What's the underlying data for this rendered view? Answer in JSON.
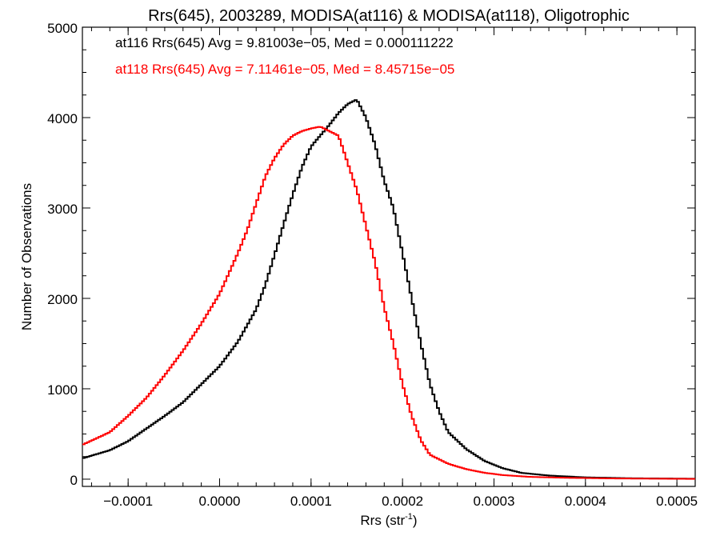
{
  "chart_data": {
    "type": "line",
    "title": "Rrs(645), 2003289, MODISA(at116) & MODISA(at118), Oligotrophic",
    "xlabel": "Rrs (str",
    "xlabel_sup": "-1",
    "xlabel_close": ")",
    "ylabel": "Number of Observations",
    "xlim": [
      -0.00015,
      0.00052
    ],
    "ylim": [
      -80,
      5000
    ],
    "x_ticks": [
      -0.0001,
      0.0,
      0.0001,
      0.0002,
      0.0003,
      0.0004,
      0.0005
    ],
    "x_tick_labels": [
      "−0.0001",
      "0.0000",
      "0.0001",
      "0.0002",
      "0.0003",
      "0.0004",
      "0.0005"
    ],
    "y_ticks": [
      0,
      1000,
      2000,
      3000,
      4000,
      5000
    ],
    "y_tick_labels": [
      "0",
      "1000",
      "2000",
      "3000",
      "4000",
      "5000"
    ],
    "grid": false,
    "legend_position": "top-left",
    "series": [
      {
        "name": "at116",
        "color": "#000000",
        "annotation": "at116 Rrs(645) Avg = 9.81003e−05, Med = 0.000111222",
        "x": [
          -0.00015,
          -0.00012,
          -0.0001,
          -8e-05,
          -6e-05,
          -4e-05,
          -2e-05,
          0.0,
          2e-05,
          4e-05,
          5e-05,
          6e-05,
          7e-05,
          8e-05,
          9e-05,
          0.0001,
          0.00011,
          0.00012,
          0.00013,
          0.00014,
          0.00015,
          0.00016,
          0.00017,
          0.00018,
          0.00019,
          0.0002,
          0.00021,
          0.00022,
          0.00023,
          0.00024,
          0.00025,
          0.00027,
          0.00029,
          0.00031,
          0.00033,
          0.00036,
          0.0004,
          0.00045,
          0.00052
        ],
        "y": [
          230,
          320,
          420,
          560,
          700,
          850,
          1050,
          1250,
          1520,
          1880,
          2150,
          2480,
          2820,
          3150,
          3450,
          3680,
          3800,
          3920,
          4050,
          4150,
          4200,
          4000,
          3700,
          3300,
          3000,
          2500,
          2000,
          1500,
          1050,
          750,
          520,
          330,
          200,
          120,
          70,
          40,
          20,
          10,
          5
        ]
      },
      {
        "name": "at118",
        "color": "#ff0000",
        "annotation": "at118 Rrs(645) Avg = 7.11461e−05, Med = 8.45715e−05",
        "x": [
          -0.00015,
          -0.00012,
          -0.0001,
          -8e-05,
          -6e-05,
          -4e-05,
          -2e-05,
          0.0,
          2e-05,
          3e-05,
          4e-05,
          5e-05,
          6e-05,
          7e-05,
          8e-05,
          9e-05,
          0.0001,
          0.00011,
          0.00012,
          0.00013,
          0.00014,
          0.00015,
          0.00016,
          0.00017,
          0.00018,
          0.00019,
          0.0002,
          0.00021,
          0.00022,
          0.00023,
          0.00025,
          0.00027,
          0.00029,
          0.00031,
          0.00034,
          0.00038,
          0.00043,
          0.00052
        ],
        "y": [
          380,
          520,
          700,
          900,
          1150,
          1420,
          1720,
          2050,
          2500,
          2750,
          3050,
          3350,
          3550,
          3700,
          3800,
          3850,
          3880,
          3900,
          3850,
          3800,
          3500,
          3200,
          2800,
          2400,
          1900,
          1500,
          1050,
          700,
          430,
          270,
          170,
          110,
          70,
          45,
          25,
          15,
          8,
          3
        ]
      }
    ]
  }
}
